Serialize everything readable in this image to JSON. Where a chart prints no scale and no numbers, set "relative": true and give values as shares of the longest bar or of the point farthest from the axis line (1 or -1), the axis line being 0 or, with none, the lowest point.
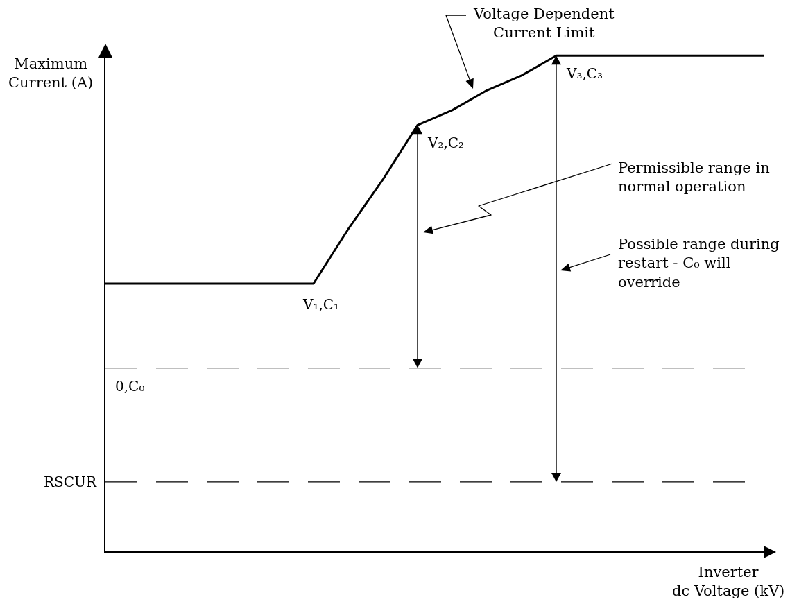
{
  "chart_data": {
    "type": "line",
    "xlabel": "Inverter dc Voltage (kV)",
    "ylabel": "Maximum Current (A)",
    "categories": [
      null,
      null,
      null,
      null,
      null,
      null,
      null,
      null,
      null,
      null,
      null,
      null,
      null,
      null,
      null,
      null,
      null,
      null,
      null,
      null
    ],
    "series": [
      {
        "color": "#000000",
        "values": [
          0.54,
          0.54,
          0.54,
          0.54,
          0.54,
          0.54,
          0.54,
          0.65,
          0.75,
          0.86,
          0.89,
          0.93,
          0.96,
          1,
          1,
          1,
          1,
          1,
          1,
          1
        ]
      }
    ],
    "relative": true,
    "tick_labels": false,
    "ref_lines": [
      {
        "axis": "y",
        "value": 0.37,
        "label": "0,C₀",
        "color": "#000000",
        "line_style": "dashed"
      },
      {
        "axis": "y",
        "value": 0.14,
        "label": "RSCUR",
        "color": "#000000",
        "line_style": "dashed"
      }
    ],
    "annotations": [
      "Voltage Dependent Current Limit",
      "Permissible range in normal operation",
      "Possible range during restart - C₀ will override",
      "V₁,C₁",
      "V₂,C₂",
      "V₃,C₃"
    ]
  }
}
